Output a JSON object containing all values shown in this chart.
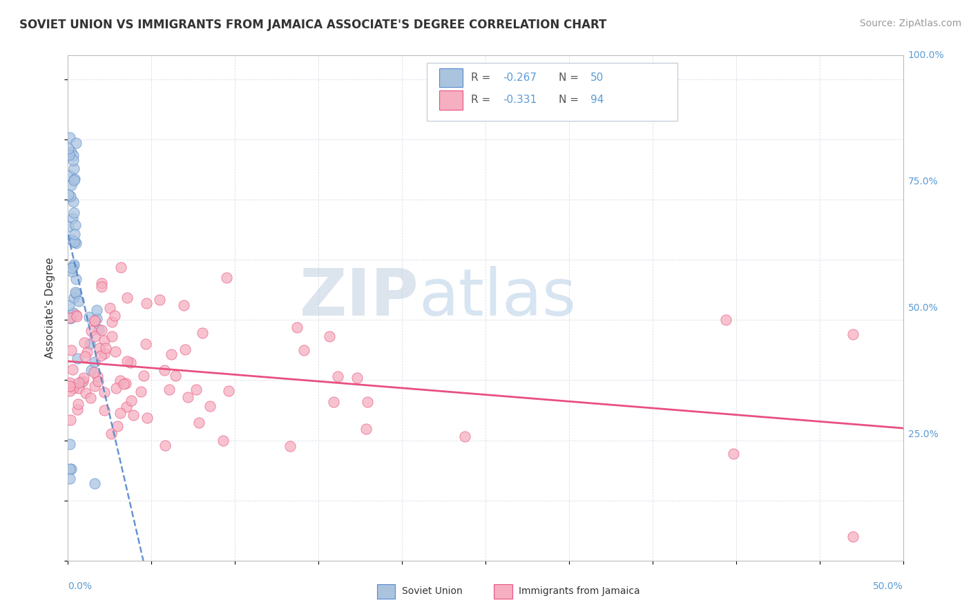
{
  "title": "SOVIET UNION VS IMMIGRANTS FROM JAMAICA ASSOCIATE'S DEGREE CORRELATION CHART",
  "source": "Source: ZipAtlas.com",
  "ylabel": "Associate's Degree",
  "legend_label1_r": "-0.267",
  "legend_label1_n": "50",
  "legend_label2_r": "-0.331",
  "legend_label2_n": "94",
  "legend_bottom1": "Soviet Union",
  "legend_bottom2": "Immigrants from Jamaica",
  "watermark_zip": "ZIP",
  "watermark_atlas": "atlas",
  "blue_color": "#aac4e0",
  "pink_color": "#f5afc0",
  "blue_line_color": "#5588cc",
  "pink_line_color": "#e85080",
  "title_color": "#333333",
  "axis_label_color": "#5b9bd5",
  "grid_color": "#d8dfe8",
  "xmin": 0.0,
  "xmax": 0.5,
  "ymin": 0.0,
  "ymax": 1.05,
  "title_fontsize": 12,
  "source_fontsize": 10,
  "axis_fontsize": 11
}
